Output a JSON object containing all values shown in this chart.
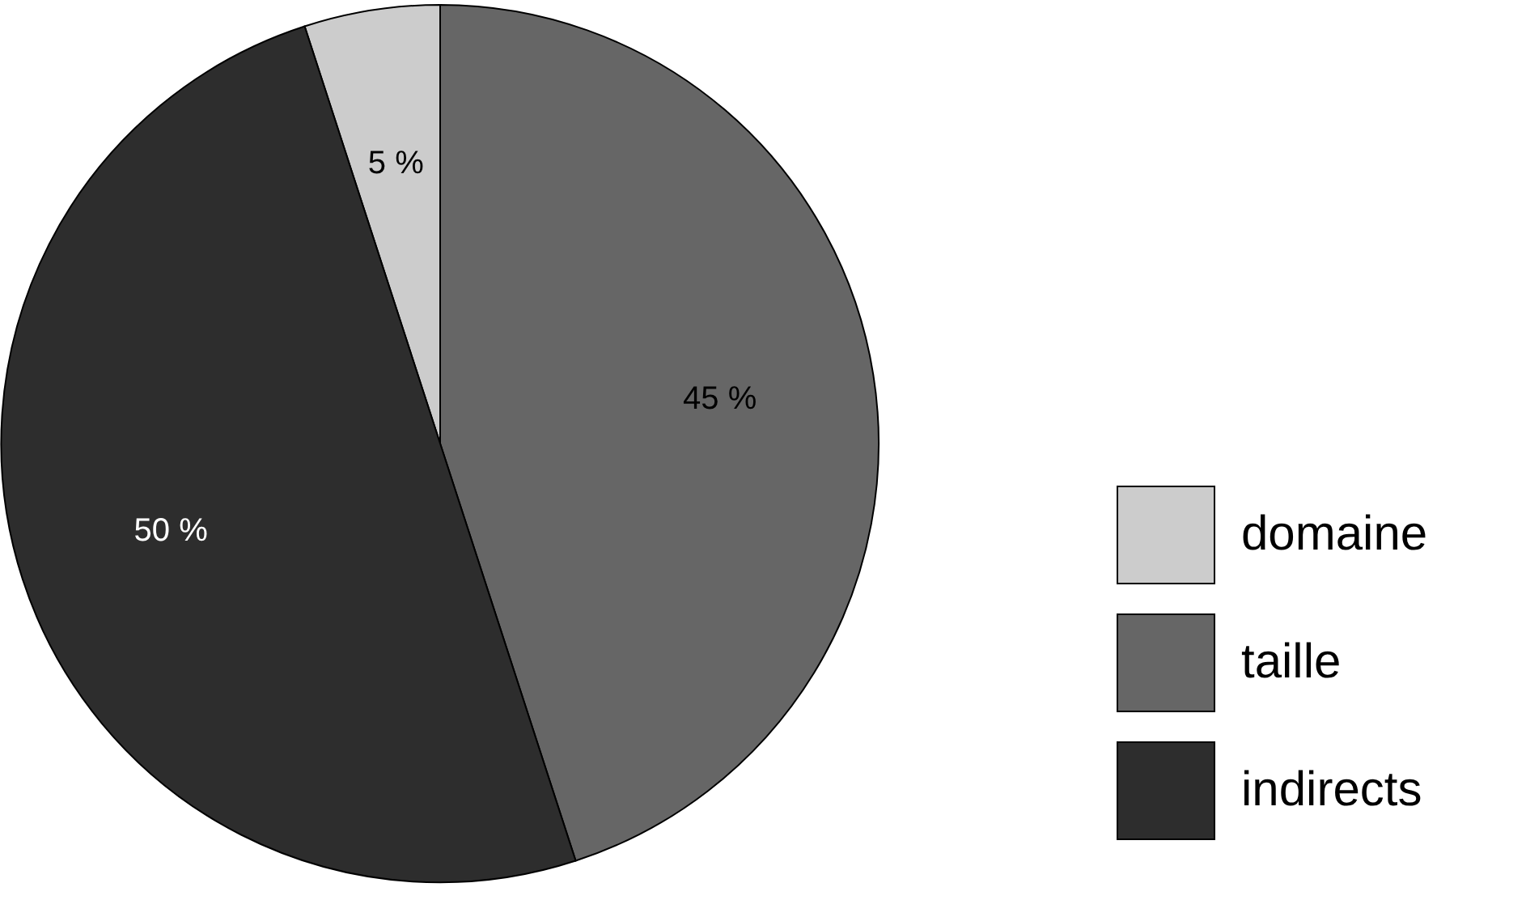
{
  "chart_data": {
    "type": "pie",
    "categories": [
      "domaine",
      "taille",
      "indirects"
    ],
    "values": [
      5,
      45,
      50
    ],
    "colors": [
      "#cccccc",
      "#666666",
      "#2d2d2d"
    ],
    "value_labels": [
      "5 %",
      "45 %",
      "50 %"
    ],
    "legend": "bottom right"
  }
}
